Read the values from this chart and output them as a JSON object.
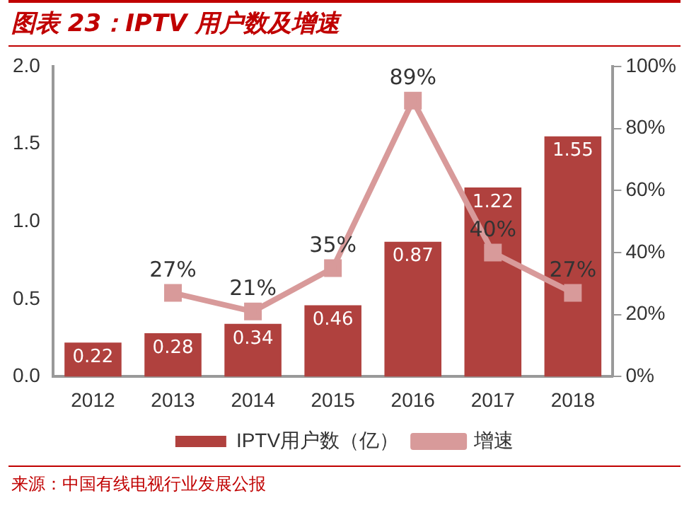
{
  "chart_data": {
    "type": "bar",
    "title": "图表 23：IPTV 用户数及增速",
    "categories": [
      "2012",
      "2013",
      "2014",
      "2015",
      "2016",
      "2017",
      "2018"
    ],
    "series": [
      {
        "name": "IPTV用户数（亿）",
        "color": "#b0413e",
        "values": [
          0.22,
          0.28,
          0.34,
          0.46,
          0.87,
          1.22,
          1.55
        ]
      },
      {
        "name": "增速",
        "type": "line",
        "axis": "y2",
        "color": "#d89a9a",
        "values": [
          null,
          27,
          21,
          35,
          89,
          40,
          27
        ],
        "value_labels": [
          null,
          "27%",
          "21%",
          "35%",
          "89%",
          "40%",
          "27%"
        ]
      }
    ],
    "ylim": [
      0,
      2
    ],
    "yticks": [
      {
        "value": 0,
        "label": "0.0"
      },
      {
        "value": 0.5,
        "label": "0.5"
      },
      {
        "value": 1,
        "label": "1.0"
      },
      {
        "value": 1.5,
        "label": "1.5"
      },
      {
        "value": 2,
        "label": "2.0"
      }
    ],
    "y2lim": [
      0,
      100
    ],
    "y2ticks": [
      {
        "value": 0,
        "label": "0%"
      },
      {
        "value": 20,
        "label": "20%"
      },
      {
        "value": 40,
        "label": "40%"
      },
      {
        "value": 60,
        "label": "60%"
      },
      {
        "value": 80,
        "label": "80%"
      },
      {
        "value": 100,
        "label": "100%"
      }
    ],
    "data_labels": true,
    "grid": false,
    "legend": "bottom",
    "marker": "square",
    "line_style": "solid",
    "annotations": [
      "来源：中国有线电视行业发展公报"
    ]
  }
}
